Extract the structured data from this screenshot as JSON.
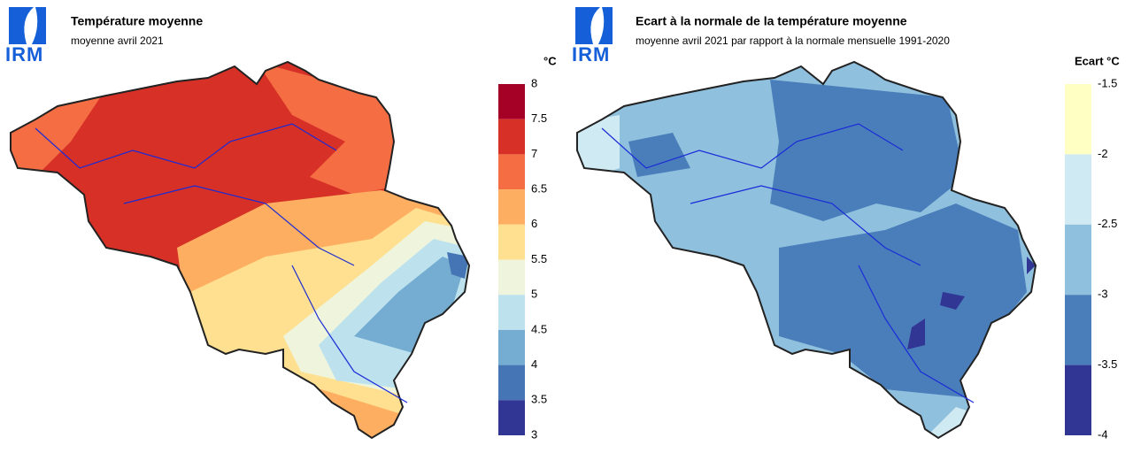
{
  "panels": [
    {
      "logo": "IRM",
      "title": "Température moyenne",
      "subtitle": "moyenne avril 2021",
      "unit": "°C",
      "legend": {
        "ticks": [
          8,
          7.5,
          7,
          6.5,
          6,
          5.5,
          5,
          4.5,
          4,
          3.5,
          3
        ],
        "colors": [
          "#a50026",
          "#d73027",
          "#f46d43",
          "#fdae61",
          "#fee090",
          "#eef5dc",
          "#bde2ee",
          "#74add1",
          "#4575b4",
          "#313695"
        ]
      }
    },
    {
      "logo": "IRM",
      "title": "Ecart à la normale de la température moyenne",
      "subtitle": "moyenne avril 2021 par rapport à la normale mensuelle 1991-2020",
      "unit": "Ecart °C",
      "legend": {
        "ticks": [
          -1.5,
          -2,
          -2.5,
          -3,
          -3.5,
          -4
        ],
        "colors": [
          "#ffffc4",
          "#d0eaf3",
          "#8fc0de",
          "#4a7ebb",
          "#313695"
        ]
      }
    }
  ]
}
